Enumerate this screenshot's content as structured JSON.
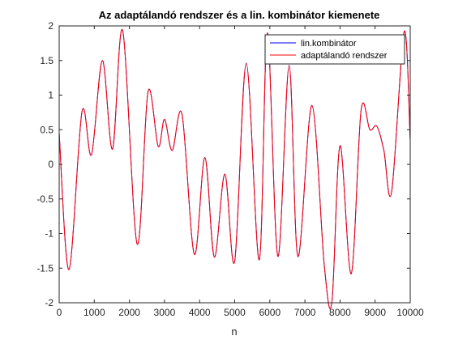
{
  "chart_data": {
    "type": "line",
    "title": "Az adaptálandó rendszer és a lin. kombinátor kiemenete",
    "xlabel": "n",
    "ylabel": "",
    "xlim": [
      0,
      10000
    ],
    "ylim": [
      -2,
      2
    ],
    "xticks": [
      0,
      1000,
      2000,
      3000,
      4000,
      5000,
      6000,
      7000,
      8000,
      9000,
      10000
    ],
    "yticks": [
      -2,
      -1.5,
      -1,
      -0.5,
      0,
      0.5,
      1,
      1.5,
      2
    ],
    "xtick_labels": [
      "0",
      "1000",
      "2000",
      "3000",
      "4000",
      "5000",
      "6000",
      "7000",
      "8000",
      "9000",
      "10000"
    ],
    "ytick_labels": [
      "-2",
      "-1.5",
      "-1",
      "-0.5",
      "0",
      "0.5",
      "1",
      "1.5",
      "2"
    ],
    "grid": false,
    "legend_position": "top-right",
    "series": [
      {
        "name": "lin.kombinátor",
        "color": "#0000ff",
        "x": [
          0,
          280,
          650,
          920,
          1230,
          1520,
          1810,
          2220,
          2530,
          2820,
          3000,
          3220,
          3500,
          3850,
          4150,
          4420,
          4720,
          5000,
          5330,
          5700,
          5930,
          6230,
          6550,
          6800,
          7200,
          7550,
          7770,
          8000,
          8320,
          8600,
          8850,
          9050,
          9250,
          9470,
          9830,
          10000
        ],
        "y": [
          0.45,
          -1.52,
          0.76,
          0.14,
          1.5,
          0.22,
          1.93,
          -1.15,
          1.05,
          0.26,
          0.65,
          0.2,
          0.72,
          -1.3,
          0.1,
          -1.34,
          -0.14,
          -1.4,
          1.46,
          -1.38,
          1.9,
          -1.33,
          1.43,
          -1.33,
          0.85,
          -1.45,
          -1.98,
          0.27,
          -1.58,
          0.78,
          0.5,
          0.55,
          0.2,
          -0.4,
          1.92,
          0.35
        ]
      },
      {
        "name": "adaptálandó rendszer",
        "color": "#ff0000",
        "x": [
          0,
          280,
          650,
          920,
          1230,
          1520,
          1810,
          2220,
          2530,
          2820,
          3000,
          3220,
          3500,
          3850,
          4150,
          4420,
          4720,
          5000,
          5330,
          5700,
          5930,
          6230,
          6550,
          6800,
          7200,
          7550,
          7770,
          8000,
          8320,
          8600,
          8850,
          9050,
          9250,
          9470,
          9830,
          10000
        ],
        "y": [
          0.45,
          -1.52,
          0.76,
          0.14,
          1.5,
          0.22,
          1.93,
          -1.15,
          1.05,
          0.26,
          0.65,
          0.2,
          0.72,
          -1.3,
          0.1,
          -1.34,
          -0.14,
          -1.4,
          1.46,
          -1.38,
          1.9,
          -1.33,
          1.43,
          -1.33,
          0.85,
          -1.45,
          -1.98,
          0.27,
          -1.58,
          0.78,
          0.5,
          0.55,
          0.2,
          -0.4,
          1.92,
          0.35
        ]
      }
    ]
  }
}
